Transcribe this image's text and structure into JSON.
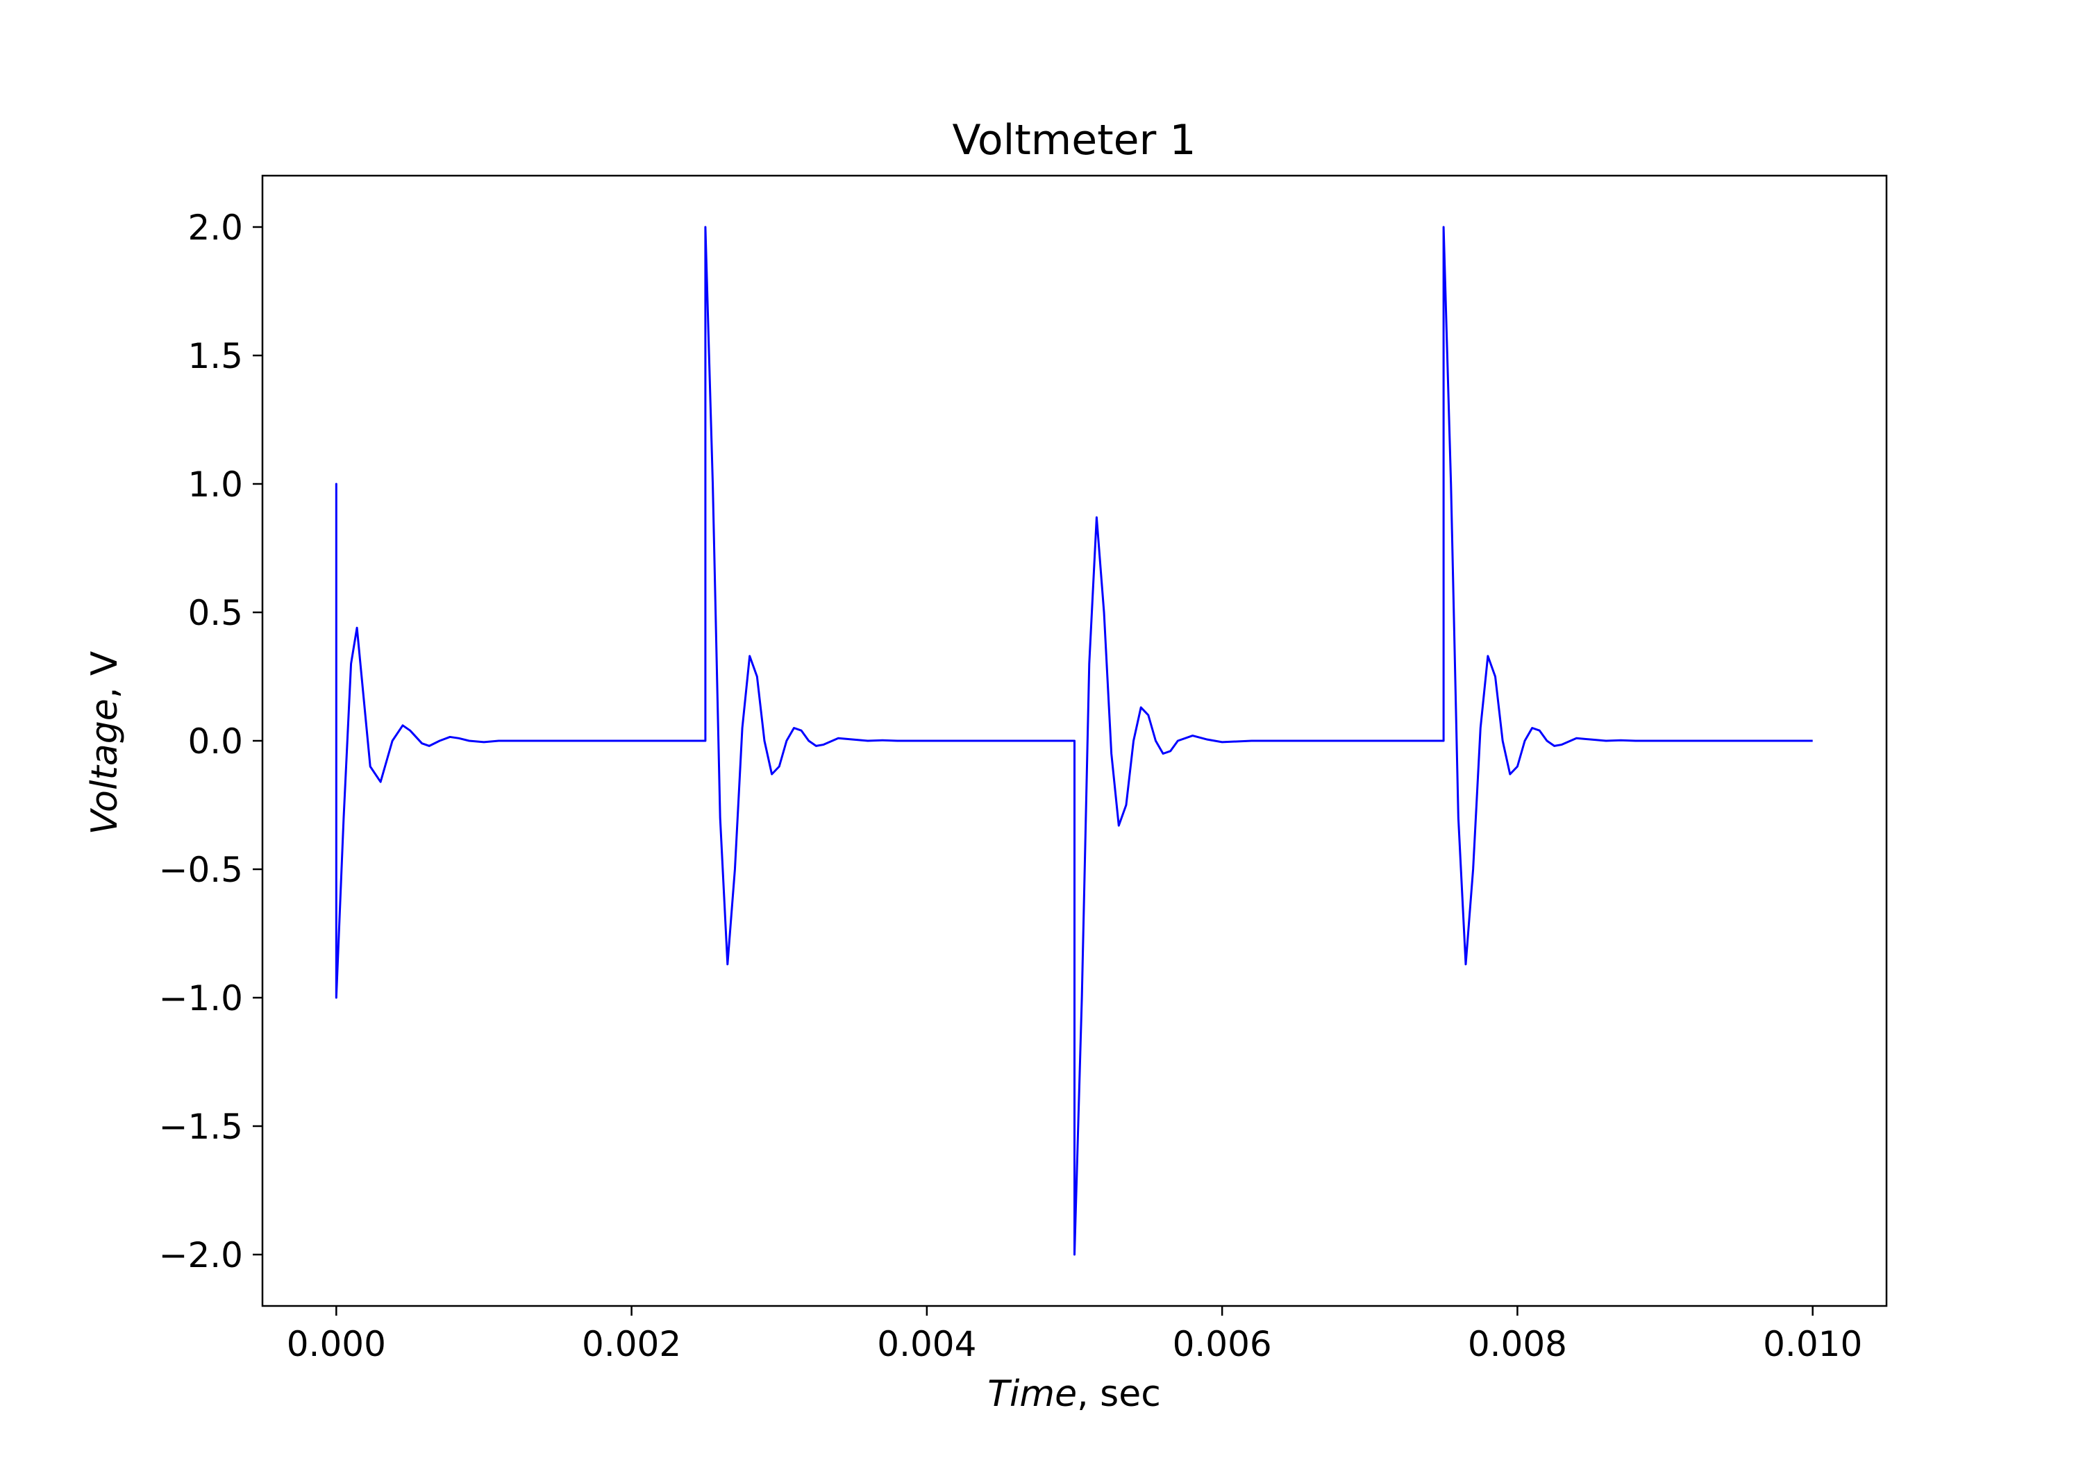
{
  "chart_data": {
    "type": "line",
    "title": "Voltmeter 1",
    "xlabel_italic": "Time",
    "xlabel_rest": ", sec",
    "ylabel_italic": "Voltage",
    "ylabel_rest": ", V",
    "xlim": [
      -0.0005,
      0.0105
    ],
    "ylim": [
      -2.2,
      2.2
    ],
    "xticks": [
      0.0,
      0.002,
      0.004,
      0.006,
      0.008,
      0.01
    ],
    "xtick_labels": [
      "0.000",
      "0.002",
      "0.004",
      "0.006",
      "0.008",
      "0.010"
    ],
    "yticks": [
      2.0,
      1.5,
      1.0,
      0.5,
      0.0,
      -0.5,
      -1.0,
      -1.5,
      -2.0
    ],
    "ytick_labels": [
      "2.0",
      "1.5",
      "1.0",
      "0.5",
      "0.0",
      "−0.5",
      "−1.0",
      "−1.5",
      "−2.0"
    ],
    "grid": false,
    "series": [
      {
        "color": "#0000ff",
        "x": [
          0.0,
          0.0,
          0.0,
          5e-05,
          0.0001,
          0.00014,
          0.00018,
          0.00023,
          0.0003,
          0.00038,
          0.00045,
          0.0005,
          0.00058,
          0.00063,
          0.0007,
          0.00077,
          0.00083,
          0.0009,
          0.001,
          0.0011,
          0.0012,
          0.0025,
          0.0025,
          0.00255,
          0.0026,
          0.00265,
          0.0027,
          0.00275,
          0.0028,
          0.00285,
          0.0029,
          0.00295,
          0.003,
          0.00305,
          0.0031,
          0.00315,
          0.0032,
          0.00325,
          0.0033,
          0.0034,
          0.0035,
          0.0036,
          0.0037,
          0.0038,
          0.004,
          0.005,
          0.005,
          0.00505,
          0.0051,
          0.00515,
          0.0052,
          0.00525,
          0.0053,
          0.00535,
          0.0054,
          0.00545,
          0.0055,
          0.00555,
          0.0056,
          0.00565,
          0.0057,
          0.0058,
          0.0059,
          0.006,
          0.0062,
          0.0075,
          0.0075,
          0.00755,
          0.0076,
          0.00765,
          0.0077,
          0.00775,
          0.0078,
          0.00785,
          0.0079,
          0.00795,
          0.008,
          0.00805,
          0.0081,
          0.00815,
          0.0082,
          0.00825,
          0.0083,
          0.0084,
          0.0085,
          0.0086,
          0.0087,
          0.0088,
          0.009,
          0.01
        ],
        "y": [
          0.0,
          1.0,
          -1.0,
          -0.3,
          0.3,
          0.44,
          0.2,
          -0.1,
          -0.16,
          0.0,
          0.06,
          0.04,
          -0.01,
          -0.02,
          0.0,
          0.015,
          0.01,
          0.0,
          -0.005,
          0.0,
          0.0,
          0.0,
          2.0,
          1.0,
          -0.3,
          -0.87,
          -0.5,
          0.05,
          0.33,
          0.25,
          0.0,
          -0.13,
          -0.1,
          0.0,
          0.05,
          0.04,
          0.0,
          -0.02,
          -0.015,
          0.01,
          0.005,
          0.0,
          0.002,
          0.0,
          0.0,
          0.0,
          -2.0,
          -1.0,
          0.3,
          0.87,
          0.5,
          -0.05,
          -0.33,
          -0.25,
          0.0,
          0.13,
          0.1,
          0.0,
          -0.05,
          -0.04,
          0.0,
          0.02,
          0.005,
          -0.005,
          0.0,
          0.0,
          2.0,
          1.0,
          -0.3,
          -0.87,
          -0.5,
          0.05,
          0.33,
          0.25,
          0.0,
          -0.13,
          -0.1,
          0.0,
          0.05,
          0.04,
          0.0,
          -0.02,
          -0.015,
          0.01,
          0.005,
          0.0,
          0.002,
          0.0,
          0.0,
          0.0
        ]
      }
    ]
  }
}
